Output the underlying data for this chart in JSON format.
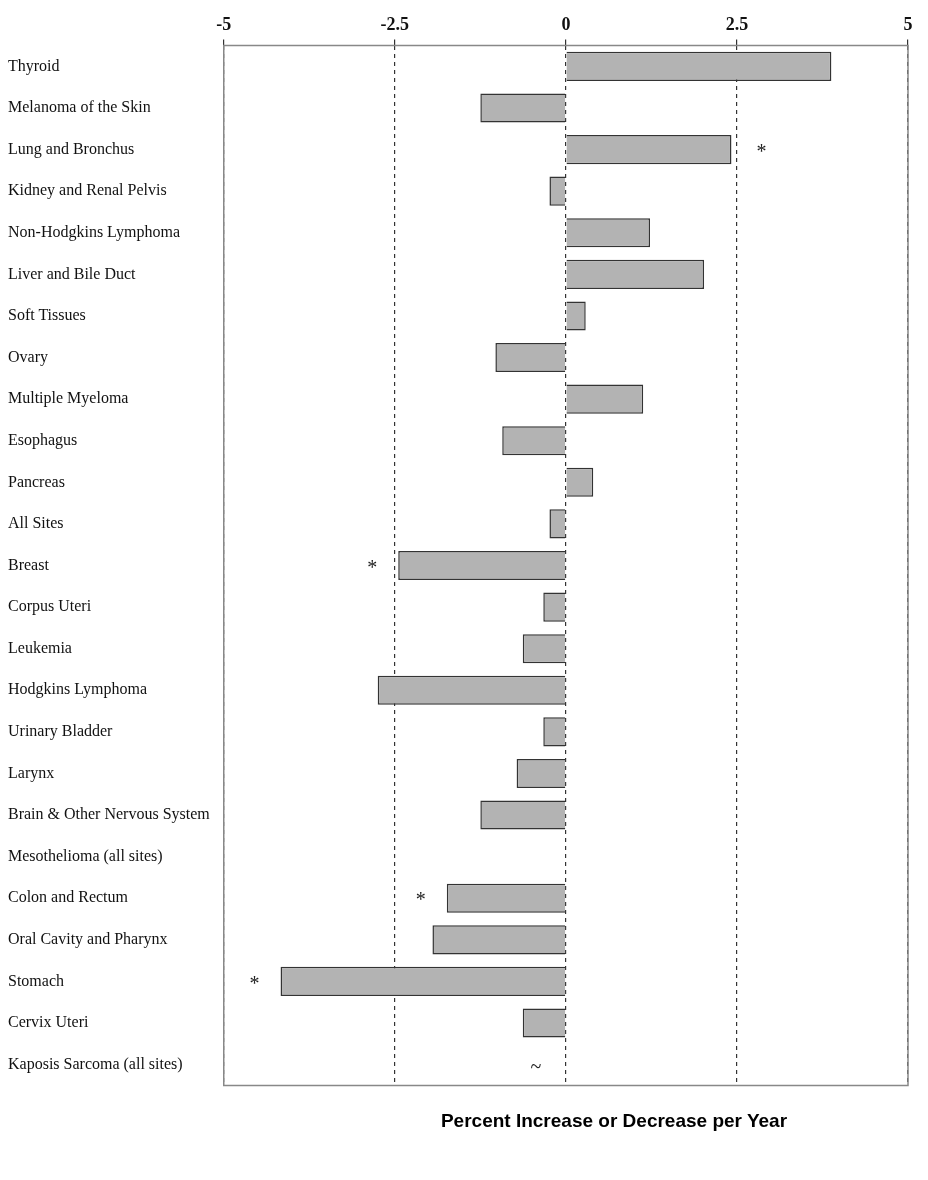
{
  "chart_data": {
    "type": "bar",
    "orientation": "horizontal",
    "xlabel": "Percent Increase or Decrease per Year",
    "categories": [
      "Thyroid",
      "Melanoma of the Skin",
      "Lung and Bronchus",
      "Kidney and Renal Pelvis",
      "Non-Hodgkins Lymphoma",
      "Liver and Bile Duct",
      "Soft Tissues",
      "Ovary",
      "Multiple Myeloma",
      "Esophagus",
      "Pancreas",
      "All Sites",
      "Breast",
      "Corpus Uteri",
      "Leukemia",
      "Hodgkins Lymphoma",
      "Urinary Bladder",
      "Larynx",
      "Brain & Other Nervous System",
      "Mesothelioma (all sites)",
      "Colon and Rectum",
      "Oral Cavity and Pharynx",
      "Stomach",
      "Cervix Uteri",
      "Kaposis Sarcoma (all sites)"
    ],
    "values": [
      3.88,
      -1.25,
      2.42,
      -0.24,
      1.23,
      2.02,
      0.29,
      -1.03,
      1.13,
      -0.93,
      0.4,
      -0.24,
      -2.45,
      -0.33,
      -0.63,
      -2.75,
      -0.33,
      -0.72,
      -1.25,
      null,
      -1.74,
      -1.95,
      -4.17,
      -0.63,
      null
    ],
    "color": "#b3b3b3",
    "xlim": [
      -5,
      5
    ],
    "xticks": [
      -5,
      -2.5,
      0,
      2.5,
      5
    ],
    "grid": "x",
    "annotations": [
      {
        "text": "*",
        "x": 2.42,
        "y": "Lung and Bronchus"
      },
      {
        "text": "*",
        "x": -2.45,
        "y": "Breast"
      },
      {
        "text": "*",
        "x": -1.74,
        "y": "Colon and Rectum"
      },
      {
        "text": "*",
        "x": -4.17,
        "y": "Stomach"
      },
      "~"
    ]
  }
}
